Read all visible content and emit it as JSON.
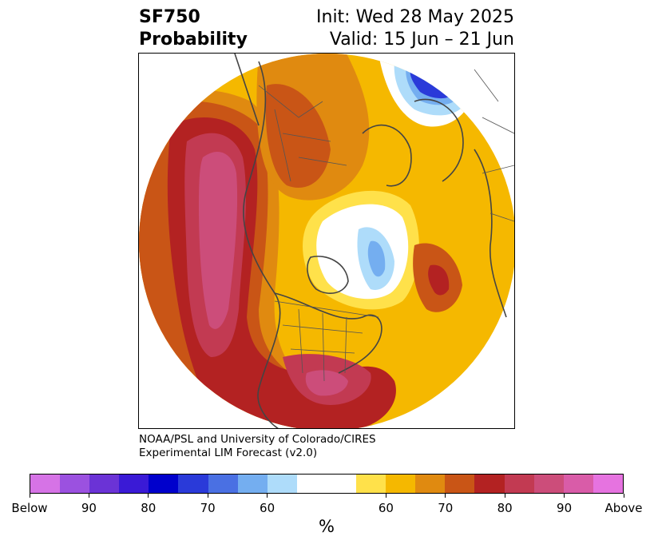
{
  "header": {
    "title_line1": "SF750",
    "title_line2": "Probability",
    "init": "Init: Wed 28 May 2025",
    "valid": "Valid: 15 Jun – 21 Jun"
  },
  "credit": {
    "line1": "NOAA/PSL and University of Colorado/CIRES",
    "line2": "Experimental LIM Forecast (v2.0)"
  },
  "colorbar": {
    "colors": [
      "#d673e6",
      "#9b51e0",
      "#6b33d6",
      "#3a1ad6",
      "#0000cc",
      "#2a3ad9",
      "#4a70e3",
      "#74aef0",
      "#aedcfa",
      "#ffffff",
      "#ffffff",
      "#ffe14a",
      "#f5b800",
      "#e08a10",
      "#c95516",
      "#b32222",
      "#c23a52",
      "#cc4d7a",
      "#d95ca8",
      "#e673e0"
    ],
    "tick_labels": [
      "Below",
      "90",
      "80",
      "70",
      "60",
      "60",
      "70",
      "80",
      "90",
      "Above"
    ],
    "unit": "%"
  },
  "map": {
    "colors": {
      "red": "#b32222",
      "darkorange": "#c95516",
      "orange": "#e08a10",
      "yellow": "#f5b800",
      "lightyellow": "#ffe14a",
      "crimson": "#c23a52",
      "rose": "#cc4d7a",
      "pink": "#d95ca8",
      "lightblue": "#aedcfa",
      "blue": "#74aef0",
      "midblue": "#4a70e3",
      "darkblue": "#2a3ad9",
      "coast": "#444444",
      "border": "#555555"
    }
  }
}
